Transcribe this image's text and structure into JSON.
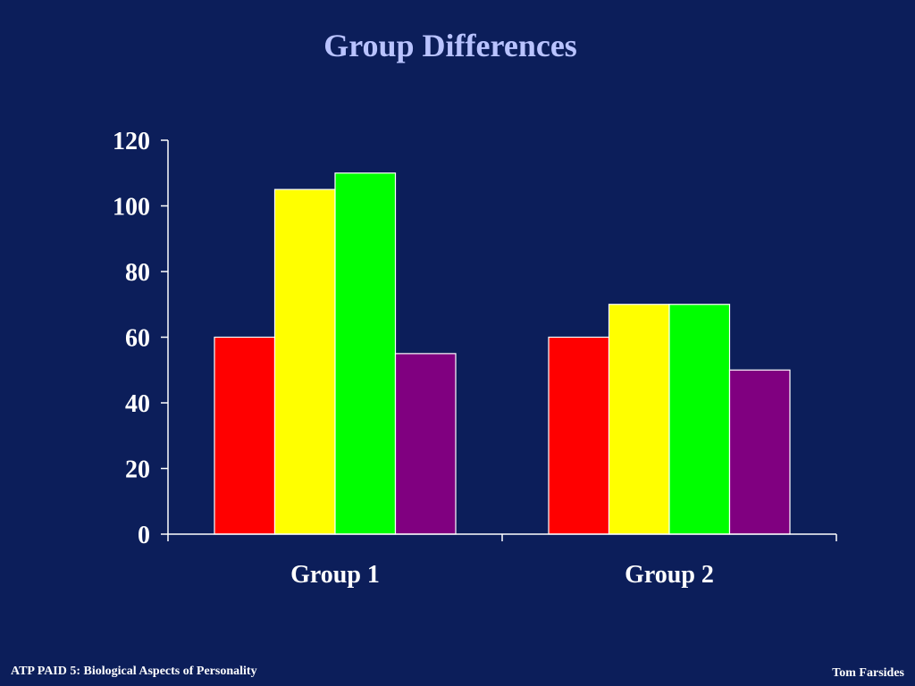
{
  "colors": {
    "background": "#0c1e5a",
    "title": "#b9c3ff",
    "text": "#ffffff",
    "axis": "#ffffff"
  },
  "slide": {
    "title": "Group Differences"
  },
  "footer": {
    "left": "ATP PAID 5: Biological Aspects of Personality",
    "right": "Tom Farsides"
  },
  "chart_data": {
    "type": "bar",
    "title": "",
    "xlabel": "",
    "ylabel": "",
    "categories": [
      "Group 1",
      "Group 2"
    ],
    "ylim": [
      0,
      120
    ],
    "yticks": [
      0,
      20,
      40,
      60,
      80,
      100,
      120
    ],
    "grid": false,
    "legend": "none",
    "series": [
      {
        "color": "#ff0000",
        "values": [
          60,
          60
        ]
      },
      {
        "color": "#ffff00",
        "values": [
          105,
          70
        ]
      },
      {
        "color": "#00ff00",
        "values": [
          110,
          70
        ]
      },
      {
        "color": "#800080",
        "values": [
          55,
          50
        ]
      }
    ]
  }
}
